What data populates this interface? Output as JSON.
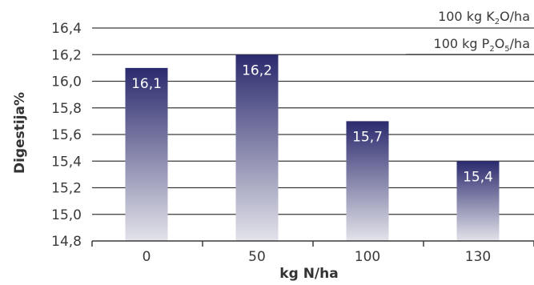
{
  "chart_data": {
    "type": "bar",
    "categories": [
      "0",
      "50",
      "100",
      "130"
    ],
    "values": [
      16.1,
      16.2,
      15.7,
      15.4
    ],
    "data_labels": [
      "16,1",
      "16,2",
      "15,7",
      "15,4"
    ],
    "xlabel": "kg N/ha",
    "ylabel": "Digestija%",
    "ylim": [
      14.8,
      16.4
    ],
    "yticks": [
      14.8,
      15.0,
      15.2,
      15.4,
      15.6,
      15.8,
      16.0,
      16.2,
      16.4
    ],
    "ytick_labels": [
      "14,8",
      "15,0",
      "15,2",
      "15,4",
      "15,6",
      "15,8",
      "16,0",
      "16,2",
      "16,4"
    ],
    "grid": true,
    "bar_color_top": "#2b2a6e",
    "bar_color_bottom": "#e3e3ea",
    "annotations": [
      {
        "parts": [
          [
            "100 kg K",
            ""
          ],
          [
            "2",
            "sub"
          ],
          [
            "O/ha",
            ""
          ]
        ]
      },
      {
        "parts": [
          [
            "100 kg P",
            ""
          ],
          [
            "2",
            "sub"
          ],
          [
            "O",
            ""
          ],
          [
            "5",
            "sub"
          ],
          [
            "/ha",
            ""
          ]
        ]
      }
    ]
  }
}
